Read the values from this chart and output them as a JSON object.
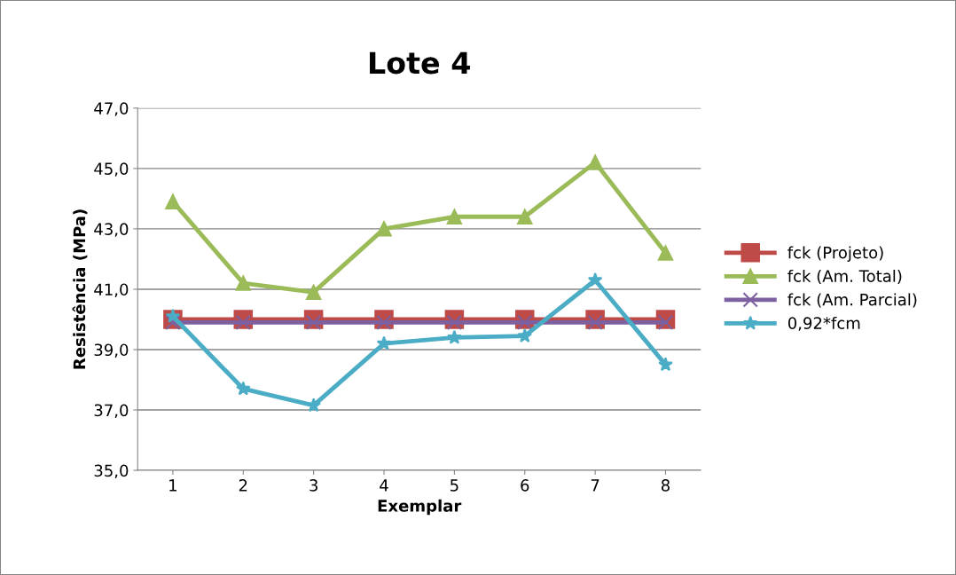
{
  "chart_data": {
    "type": "line",
    "title": "Lote 4",
    "xlabel": "Exemplar",
    "ylabel": "Resistência (MPa)",
    "categories": [
      "1",
      "2",
      "3",
      "4",
      "5",
      "6",
      "7",
      "8"
    ],
    "ylim": [
      35,
      47
    ],
    "yticks": [
      {
        "value": 35,
        "label": "35,0"
      },
      {
        "value": 37,
        "label": "37,0"
      },
      {
        "value": 39,
        "label": "39,0"
      },
      {
        "value": 41,
        "label": "41,0"
      },
      {
        "value": 43,
        "label": "43,0"
      },
      {
        "value": 45,
        "label": "45,0"
      },
      {
        "value": 47,
        "label": "47,0"
      }
    ],
    "grid": "y",
    "legend": "right",
    "series": [
      {
        "name": "fck (Projeto)",
        "color": "#be4b48",
        "marker": "square",
        "values": [
          40.0,
          40.0,
          40.0,
          40.0,
          40.0,
          40.0,
          40.0,
          40.0
        ]
      },
      {
        "name": "fck (Am. Total)",
        "color": "#9bbb59",
        "marker": "triangle",
        "values": [
          43.9,
          41.2,
          40.9,
          43.0,
          43.4,
          43.4,
          45.2,
          42.2
        ]
      },
      {
        "name": "fck (Am. Parcial)",
        "color": "#7d60a0",
        "marker": "cross",
        "values": [
          39.9,
          39.9,
          39.9,
          39.9,
          39.9,
          39.9,
          39.9,
          39.9
        ]
      },
      {
        "name": "0,92*fcm",
        "color": "#4bacc6",
        "marker": "star",
        "values": [
          40.1,
          37.7,
          37.15,
          39.2,
          39.4,
          39.45,
          41.3,
          38.5
        ]
      }
    ]
  }
}
